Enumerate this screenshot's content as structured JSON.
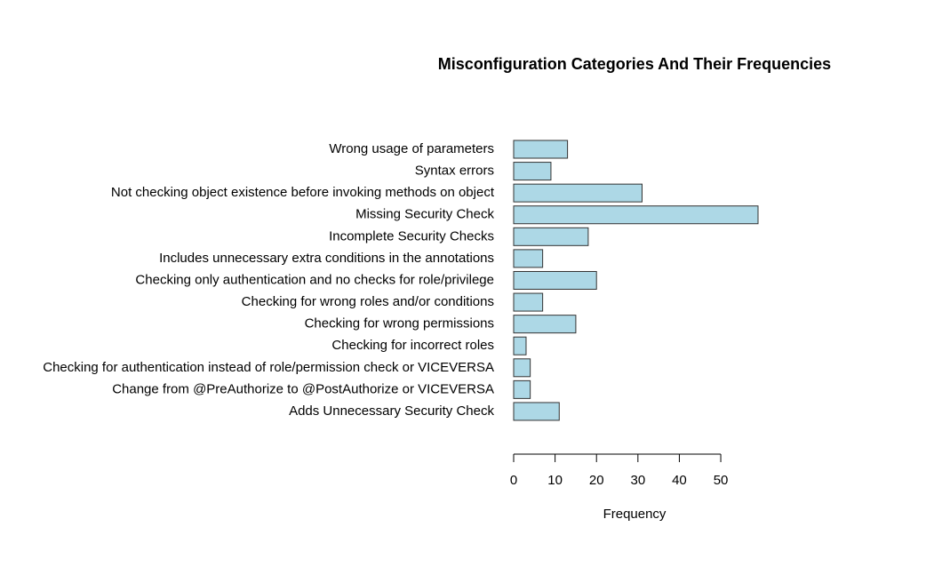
{
  "chart_data": {
    "type": "bar",
    "orientation": "horizontal",
    "title": "Misconfiguration Categories And Their Frequencies",
    "x_label": "Frequency",
    "categories": [
      "Wrong usage of parameters",
      "Syntax errors",
      "Not checking object existence before invoking methods on object",
      "Missing Security Check",
      "Incomplete Security Checks",
      "Includes unnecessary extra conditions in the annotations",
      "Checking only authentication and no checks for role/privilege",
      "Checking for wrong roles and/or conditions",
      "Checking for wrong permissions",
      "Checking for incorrect roles",
      "Checking for authentication instead of role/permission check or VICEVERSA",
      "Change from @PreAuthorize to @PostAuthorize or VICEVERSA",
      "Adds Unnecessary Security Check",
      null
    ],
    "values": [
      13,
      9,
      31,
      59,
      18,
      7,
      20,
      7,
      15,
      3,
      4,
      4,
      11,
      0
    ],
    "color": "#add8e6",
    "xlim": [
      0,
      59
    ],
    "xticks": [
      0,
      10,
      20,
      30,
      40,
      50
    ],
    "grid": false
  }
}
